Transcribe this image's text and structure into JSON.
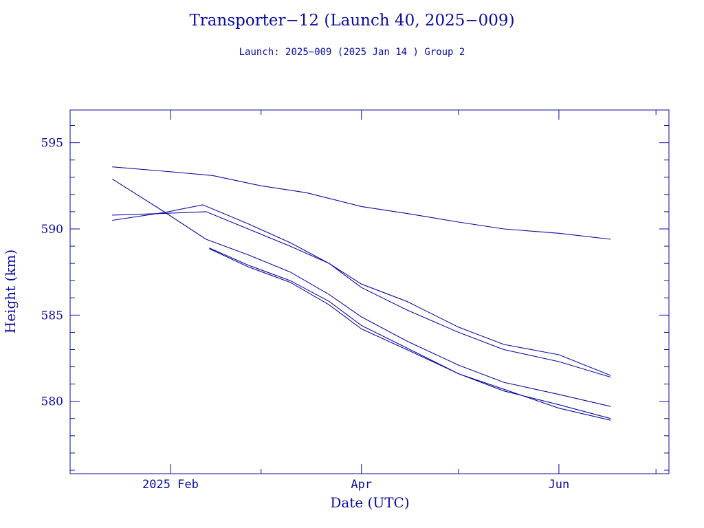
{
  "chart_data": {
    "type": "line",
    "title": "Transporter−12 (Launch 40, 2025−009)",
    "subtitle": "Launch: 2025−009  (2025 Jan 14 )  Group 2",
    "xlabel": "Date (UTC)",
    "ylabel": "Height (km)",
    "xlim": [
      "2025-01-01",
      "2025-07-05"
    ],
    "ylim": [
      575.8,
      596.9
    ],
    "x_ticks": [
      {
        "date": "2025-02-01",
        "label": "2025 Feb"
      },
      {
        "date": "2025-04-01",
        "label": "Apr"
      },
      {
        "date": "2025-06-01",
        "label": "Jun"
      }
    ],
    "x_minor_dates": [
      "2025-01-01",
      "2025-03-01",
      "2025-05-01",
      "2025-07-01"
    ],
    "y_ticks": [
      595,
      590,
      585,
      580
    ],
    "y_minor_step": 1,
    "line_color": "#0a0aa0",
    "grid": false,
    "series": [
      {
        "x": [
          "2025-01-14",
          "2025-01-30",
          "2025-02-14",
          "2025-03-01",
          "2025-03-15",
          "2025-04-01",
          "2025-04-15",
          "2025-05-01",
          "2025-05-15",
          "2025-06-01",
          "2025-06-17"
        ],
        "values": [
          593.6,
          593.35,
          593.1,
          592.5,
          592.1,
          591.3,
          590.9,
          590.4,
          590.0,
          589.75,
          589.4
        ]
      },
      {
        "x": [
          "2025-01-14",
          "2025-01-30",
          "2025-02-12",
          "2025-02-25",
          "2025-03-10",
          "2025-03-22",
          "2025-04-01",
          "2025-04-15",
          "2025-05-01",
          "2025-05-15",
          "2025-06-01",
          "2025-06-17"
        ],
        "values": [
          590.8,
          590.9,
          591.0,
          590.0,
          589.0,
          588.0,
          586.8,
          585.8,
          584.3,
          583.3,
          582.7,
          581.5
        ]
      },
      {
        "x": [
          "2025-01-14",
          "2025-01-30",
          "2025-02-11",
          "2025-02-25",
          "2025-03-10",
          "2025-03-22",
          "2025-04-01",
          "2025-04-15",
          "2025-05-01",
          "2025-05-15",
          "2025-06-01",
          "2025-06-17"
        ],
        "values": [
          590.5,
          590.95,
          591.4,
          590.3,
          589.2,
          588.0,
          586.6,
          585.3,
          584.0,
          583.0,
          582.3,
          581.4
        ]
      },
      {
        "x": [
          "2025-01-14",
          "2025-01-30",
          "2025-02-12",
          "2025-02-25",
          "2025-03-10",
          "2025-03-22",
          "2025-04-01",
          "2025-04-15",
          "2025-05-01",
          "2025-05-15",
          "2025-06-01",
          "2025-06-17"
        ],
        "values": [
          592.9,
          591.0,
          589.4,
          588.5,
          587.5,
          586.2,
          584.9,
          583.5,
          582.1,
          581.1,
          580.4,
          579.7
        ]
      },
      {
        "x": [
          "2025-02-13",
          "2025-02-25",
          "2025-03-10",
          "2025-03-22",
          "2025-04-01",
          "2025-04-15",
          "2025-05-01",
          "2025-05-15",
          "2025-06-01",
          "2025-06-17"
        ],
        "values": [
          588.9,
          587.9,
          587.0,
          585.8,
          584.4,
          583.1,
          581.6,
          580.6,
          579.8,
          579.0
        ]
      },
      {
        "x": [
          "2025-02-13",
          "2025-02-25",
          "2025-03-10",
          "2025-03-22",
          "2025-04-01",
          "2025-04-15",
          "2025-05-01",
          "2025-05-15",
          "2025-06-01",
          "2025-06-17"
        ],
        "values": [
          588.85,
          587.8,
          586.9,
          585.6,
          584.2,
          583.0,
          581.6,
          580.7,
          579.6,
          578.9
        ]
      }
    ]
  }
}
